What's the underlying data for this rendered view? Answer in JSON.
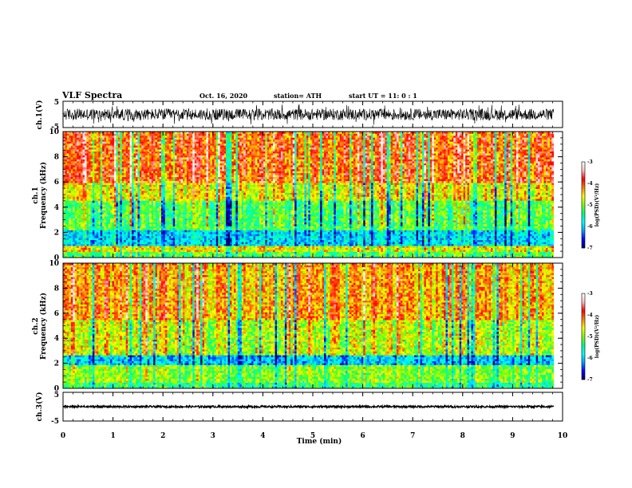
{
  "header": {
    "title": "VLF Spectra",
    "date": "Oct. 16, 2020",
    "station": "station= ATH",
    "start": "start  UT =   11: 0  : 1"
  },
  "colors": {
    "colormap": [
      "#000060",
      "#0000ff",
      "#00a0ff",
      "#00ffff",
      "#00ff80",
      "#80ff00",
      "#ffff00",
      "#ff8000",
      "#ff0000",
      "#ffc0c0",
      "#ffffff"
    ],
    "trace": "#000000"
  },
  "chart_data": [
    {
      "type": "line",
      "name": "ch1-waveform",
      "ylabel": "ch.1(V)",
      "ylim": [
        -5,
        5
      ],
      "yticks": [
        "5",
        "-5"
      ],
      "xlim": [
        0,
        10
      ],
      "amplitude_range_V": [
        -2.2,
        2.2
      ]
    },
    {
      "type": "heatmap",
      "name": "ch1-spectrogram",
      "ylabel_top": "ch.1",
      "ylabel": "Frequency  (kHz)",
      "ylim": [
        0,
        10
      ],
      "yticks": [
        "0",
        "2",
        "4",
        "6",
        "8",
        "10"
      ],
      "xlim": [
        0,
        10
      ],
      "data_end_min": 9.82,
      "colorbar": {
        "label": "log(PSD)(V²/Hz)",
        "range": [
          -7,
          -3
        ],
        "ticks": [
          "-3",
          "-4",
          "-5",
          "-6",
          "-7"
        ]
      },
      "bands": [
        {
          "f_kHz": [
            0.0,
            0.4
          ],
          "level": -5.2
        },
        {
          "f_kHz": [
            0.4,
            0.9
          ],
          "level": -4.6
        },
        {
          "f_kHz": [
            0.9,
            2.2
          ],
          "level": -5.9
        },
        {
          "f_kHz": [
            2.2,
            4.5
          ],
          "level": -5.2
        },
        {
          "f_kHz": [
            4.5,
            6.0
          ],
          "level": -4.6
        },
        {
          "f_kHz": [
            6.0,
            10.0
          ],
          "level": -4.0
        }
      ]
    },
    {
      "type": "heatmap",
      "name": "ch2-spectrogram",
      "ylabel_top": "ch.2",
      "ylabel": "Frequency  (kHz)",
      "ylim": [
        0,
        10
      ],
      "yticks": [
        "0",
        "2",
        "4",
        "6",
        "8",
        "10"
      ],
      "xlim": [
        0,
        10
      ],
      "data_end_min": 9.82,
      "colorbar": {
        "label": "log(PSD)(V²/Hz)",
        "range": [
          -7,
          -3
        ],
        "ticks": [
          "-3",
          "-4",
          "-5",
          "-6",
          "-7"
        ]
      },
      "bands": [
        {
          "f_kHz": [
            0.0,
            0.5
          ],
          "level": -5.4
        },
        {
          "f_kHz": [
            0.5,
            1.9
          ],
          "level": -5.0
        },
        {
          "f_kHz": [
            1.9,
            2.6
          ],
          "level": -6.0
        },
        {
          "f_kHz": [
            2.6,
            5.5
          ],
          "level": -4.8
        },
        {
          "f_kHz": [
            5.5,
            10.0
          ],
          "level": -4.3
        }
      ]
    },
    {
      "type": "line",
      "name": "ch3-waveform",
      "ylabel": "ch.3(V)",
      "ylim": [
        -5,
        5
      ],
      "yticks": [
        "5",
        "-5"
      ],
      "xlim": [
        0,
        10
      ],
      "amplitude_range_V": [
        -0.35,
        0.35
      ]
    }
  ],
  "xaxis": {
    "label": "Time  (min)",
    "ticks": [
      "0",
      "1",
      "2",
      "3",
      "4",
      "5",
      "6",
      "7",
      "8",
      "9",
      "10"
    ],
    "range": [
      0,
      10
    ]
  }
}
